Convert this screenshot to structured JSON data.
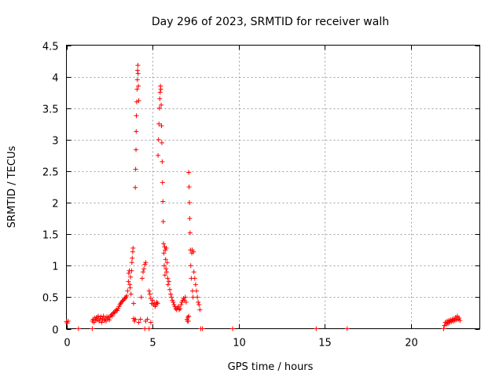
{
  "chart_data": {
    "type": "scatter",
    "title": "Day 296 of 2023, SRMTID for receiver walh",
    "xlabel": "GPS time / hours",
    "ylabel": "SRMTID / TECUs",
    "xlim": [
      0,
      24
    ],
    "ylim": [
      0,
      4.5
    ],
    "xticks": [
      0,
      5,
      10,
      15,
      20
    ],
    "xtick_labels": [
      "0",
      "5",
      "10",
      "15",
      "20"
    ],
    "yticks": [
      0,
      0.5,
      1,
      1.5,
      2,
      2.5,
      3,
      3.5,
      4,
      4.5
    ],
    "ytick_labels": [
      "0",
      "0.5",
      "1",
      "1.5",
      "2",
      "2.5",
      "3",
      "3.5",
      "4",
      "4.5"
    ],
    "grid": true,
    "marker": "+",
    "color": "#ff0000",
    "series": [
      {
        "name": "SRMTID",
        "points": [
          [
            0.0,
            0.11
          ],
          [
            0.05,
            0.09
          ],
          [
            0.1,
            0.12
          ],
          [
            0.7,
            0.0
          ],
          [
            1.5,
            0.0
          ],
          [
            1.5,
            0.12
          ],
          [
            1.55,
            0.15
          ],
          [
            1.6,
            0.1
          ],
          [
            1.65,
            0.17
          ],
          [
            1.7,
            0.13
          ],
          [
            1.75,
            0.18
          ],
          [
            1.8,
            0.14
          ],
          [
            1.85,
            0.2
          ],
          [
            1.9,
            0.12
          ],
          [
            1.95,
            0.16
          ],
          [
            2.0,
            0.19
          ],
          [
            2.05,
            0.1
          ],
          [
            2.1,
            0.15
          ],
          [
            2.15,
            0.2
          ],
          [
            2.2,
            0.13
          ],
          [
            2.25,
            0.17
          ],
          [
            2.3,
            0.12
          ],
          [
            2.35,
            0.19
          ],
          [
            2.4,
            0.15
          ],
          [
            2.45,
            0.18
          ],
          [
            2.5,
            0.14
          ],
          [
            2.55,
            0.2
          ],
          [
            2.6,
            0.22
          ],
          [
            2.65,
            0.2
          ],
          [
            2.7,
            0.24
          ],
          [
            2.75,
            0.26
          ],
          [
            2.8,
            0.25
          ],
          [
            2.85,
            0.28
          ],
          [
            2.9,
            0.3
          ],
          [
            2.95,
            0.29
          ],
          [
            3.0,
            0.32
          ],
          [
            3.05,
            0.35
          ],
          [
            3.1,
            0.38
          ],
          [
            3.15,
            0.4
          ],
          [
            3.2,
            0.42
          ],
          [
            3.25,
            0.44
          ],
          [
            3.3,
            0.45
          ],
          [
            3.35,
            0.47
          ],
          [
            3.4,
            0.48
          ],
          [
            3.45,
            0.5
          ],
          [
            3.5,
            0.52
          ],
          [
            3.55,
            0.6
          ],
          [
            3.6,
            0.75
          ],
          [
            3.62,
            0.88
          ],
          [
            3.65,
            0.92
          ],
          [
            3.68,
            0.7
          ],
          [
            3.7,
            0.65
          ],
          [
            3.72,
            0.82
          ],
          [
            3.75,
            0.55
          ],
          [
            3.78,
            0.92
          ],
          [
            3.8,
            1.05
          ],
          [
            3.82,
            1.12
          ],
          [
            3.85,
            1.22
          ],
          [
            3.87,
            1.28
          ],
          [
            3.9,
            0.4
          ],
          [
            3.9,
            0.16
          ],
          [
            3.95,
            0.12
          ],
          [
            4.0,
            0.15
          ],
          [
            4.0,
            2.24
          ],
          [
            4.02,
            2.53
          ],
          [
            4.04,
            2.84
          ],
          [
            4.05,
            3.13
          ],
          [
            4.06,
            3.38
          ],
          [
            4.08,
            3.6
          ],
          [
            4.1,
            3.8
          ],
          [
            4.12,
            3.95
          ],
          [
            4.13,
            4.1
          ],
          [
            4.15,
            4.18
          ],
          [
            4.16,
            4.05
          ],
          [
            4.18,
            3.85
          ],
          [
            4.2,
            3.62
          ],
          [
            4.2,
            0.1
          ],
          [
            4.3,
            0.15
          ],
          [
            4.35,
            0.5
          ],
          [
            4.4,
            0.8
          ],
          [
            4.45,
            0.9
          ],
          [
            4.5,
            0.95
          ],
          [
            4.55,
            1.02
          ],
          [
            4.6,
            1.05
          ],
          [
            4.6,
            0.12
          ],
          [
            4.7,
            0.15
          ],
          [
            4.8,
            0.6
          ],
          [
            4.85,
            0.55
          ],
          [
            4.9,
            0.48
          ],
          [
            4.95,
            0.4
          ],
          [
            5.0,
            0.45
          ],
          [
            5.05,
            0.38
          ],
          [
            4.55,
            0.0
          ],
          [
            4.8,
            0.0
          ],
          [
            4.9,
            0.1
          ],
          [
            5.1,
            0.4
          ],
          [
            5.15,
            0.35
          ],
          [
            5.2,
            0.38
          ],
          [
            5.25,
            0.42
          ],
          [
            5.3,
            0.4
          ],
          [
            5.32,
            2.75
          ],
          [
            5.35,
            3.0
          ],
          [
            5.37,
            3.25
          ],
          [
            5.4,
            3.5
          ],
          [
            5.42,
            3.65
          ],
          [
            5.44,
            3.75
          ],
          [
            5.46,
            3.85
          ],
          [
            5.48,
            3.8
          ],
          [
            5.5,
            3.55
          ],
          [
            5.52,
            3.22
          ],
          [
            5.54,
            2.95
          ],
          [
            5.56,
            2.65
          ],
          [
            5.58,
            2.32
          ],
          [
            5.6,
            2.02
          ],
          [
            5.62,
            1.7
          ],
          [
            5.64,
            1.35
          ],
          [
            5.66,
            1.2
          ],
          [
            5.68,
            1.0
          ],
          [
            5.7,
            1.3
          ],
          [
            5.72,
            0.85
          ],
          [
            5.74,
            1.25
          ],
          [
            5.76,
            1.1
          ],
          [
            5.78,
            0.95
          ],
          [
            5.8,
            1.28
          ],
          [
            5.82,
            0.9
          ],
          [
            5.85,
            1.05
          ],
          [
            5.88,
            0.8
          ],
          [
            5.9,
            0.7
          ],
          [
            5.95,
            0.75
          ],
          [
            6.0,
            0.62
          ],
          [
            6.05,
            0.55
          ],
          [
            6.1,
            0.5
          ],
          [
            6.15,
            0.45
          ],
          [
            6.2,
            0.42
          ],
          [
            6.25,
            0.38
          ],
          [
            6.3,
            0.35
          ],
          [
            6.35,
            0.32
          ],
          [
            6.4,
            0.3
          ],
          [
            6.45,
            0.33
          ],
          [
            6.5,
            0.35
          ],
          [
            6.55,
            0.3
          ],
          [
            6.6,
            0.32
          ],
          [
            6.65,
            0.38
          ],
          [
            6.7,
            0.42
          ],
          [
            6.75,
            0.45
          ],
          [
            6.8,
            0.48
          ],
          [
            6.85,
            0.45
          ],
          [
            6.9,
            0.5
          ],
          [
            6.95,
            0.42
          ],
          [
            7.0,
            0.15
          ],
          [
            7.02,
            0.12
          ],
          [
            7.05,
            0.18
          ],
          [
            7.08,
            0.12
          ],
          [
            7.1,
            0.2
          ],
          [
            7.1,
            2.48
          ],
          [
            7.12,
            2.25
          ],
          [
            7.14,
            2.0
          ],
          [
            7.16,
            1.75
          ],
          [
            7.18,
            1.52
          ],
          [
            7.2,
            1.25
          ],
          [
            7.22,
            1.0
          ],
          [
            7.25,
            0.8
          ],
          [
            7.28,
            1.2
          ],
          [
            7.3,
            1.25
          ],
          [
            7.32,
            0.6
          ],
          [
            7.35,
            0.5
          ],
          [
            7.38,
            1.22
          ],
          [
            7.4,
            0.9
          ],
          [
            7.45,
            0.8
          ],
          [
            7.5,
            0.7
          ],
          [
            7.55,
            0.6
          ],
          [
            7.6,
            0.5
          ],
          [
            7.65,
            0.42
          ],
          [
            7.7,
            0.38
          ],
          [
            7.75,
            0.3
          ],
          [
            7.8,
            0.0
          ],
          [
            7.9,
            0.0
          ],
          [
            9.65,
            0.0
          ],
          [
            14.5,
            0.0
          ],
          [
            16.3,
            0.0
          ],
          [
            21.9,
            0.0
          ],
          [
            21.95,
            0.05
          ],
          [
            22.0,
            0.1
          ],
          [
            22.05,
            0.07
          ],
          [
            22.1,
            0.12
          ],
          [
            22.15,
            0.08
          ],
          [
            22.2,
            0.13
          ],
          [
            22.25,
            0.1
          ],
          [
            22.3,
            0.14
          ],
          [
            22.35,
            0.11
          ],
          [
            22.4,
            0.15
          ],
          [
            22.45,
            0.12
          ],
          [
            22.5,
            0.16
          ],
          [
            22.55,
            0.13
          ],
          [
            22.6,
            0.18
          ],
          [
            22.65,
            0.14
          ],
          [
            22.7,
            0.2
          ],
          [
            22.75,
            0.15
          ],
          [
            22.8,
            0.17
          ],
          [
            22.85,
            0.13
          ]
        ]
      }
    ]
  }
}
